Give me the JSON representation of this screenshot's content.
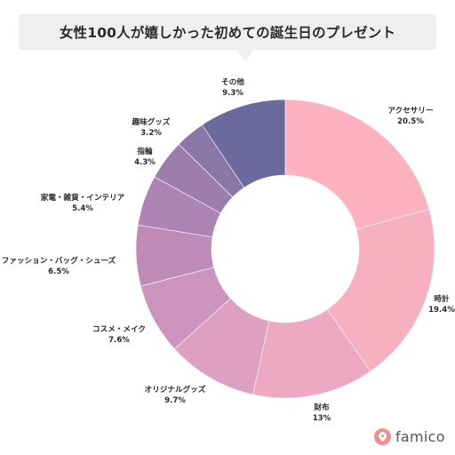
{
  "chart_data": {
    "type": "pie",
    "title": "女性100人が嬉しかった初めての誕生日のプレゼント",
    "slices": [
      {
        "label": "アクセサリー",
        "value": 20.5,
        "value_label": "20.5%",
        "color": "#fdb3bf"
      },
      {
        "label": "時計",
        "value": 19.4,
        "value_label": "19.4%",
        "color": "#f7b0c0"
      },
      {
        "label": "財布",
        "value": 13,
        "value_label": "13%",
        "color": "#eda9c1"
      },
      {
        "label": "オリジナルグッズ",
        "value": 9.7,
        "value_label": "9.7%",
        "color": "#dda0c1"
      },
      {
        "label": "コスメ・メイク",
        "value": 7.6,
        "value_label": "7.6%",
        "color": "#cd95bd"
      },
      {
        "label": "ファッション・バッグ・シューズ",
        "value": 6.5,
        "value_label": "6.5%",
        "color": "#be8ab8"
      },
      {
        "label": "家電・雑貨・インテリア",
        "value": 5.4,
        "value_label": "5.4%",
        "color": "#ad84b4"
      },
      {
        "label": "指輪",
        "value": 4.3,
        "value_label": "4.3%",
        "color": "#9d7dae"
      },
      {
        "label": "趣味グッズ",
        "value": 3.2,
        "value_label": "3.2%",
        "color": "#8a77a8"
      },
      {
        "label": "その他",
        "value": 9.3,
        "value_label": "9.3%",
        "color": "#6c6a9c"
      }
    ]
  },
  "brand": {
    "name": "famico",
    "icon": "famico-logo-icon",
    "color": "#f08f8f"
  }
}
